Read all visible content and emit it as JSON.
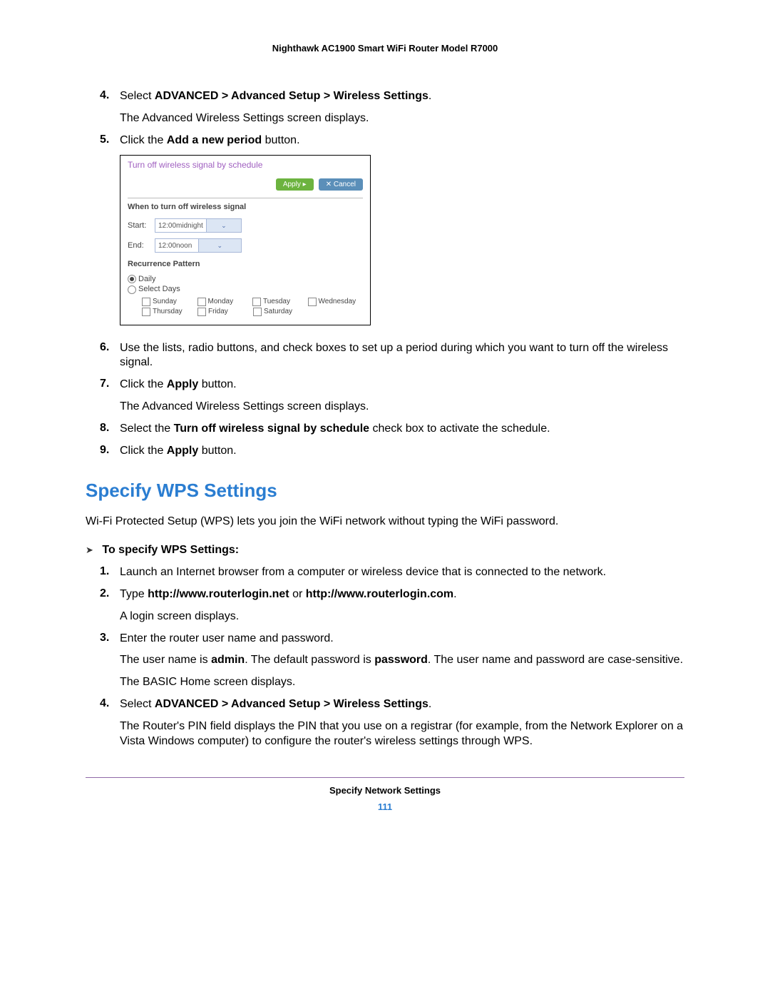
{
  "header": "Nighthawk AC1900 Smart WiFi Router Model R7000",
  "steps_top": {
    "4": {
      "line1_prefix": "Select ",
      "line1_bold": "ADVANCED > Advanced Setup > Wireless Settings",
      "line1_suffix": ".",
      "line2": "The Advanced Wireless Settings screen displays."
    },
    "5": {
      "line1_prefix": "Click the ",
      "line1_bold": "Add a new period",
      "line1_suffix": " button."
    },
    "6": "Use the lists, radio buttons, and check boxes to set up a period during which you want to turn off the wireless signal.",
    "7": {
      "line1_prefix": "Click the ",
      "line1_bold": "Apply",
      "line1_suffix": " button.",
      "line2": "The Advanced Wireless Settings screen displays."
    },
    "8": {
      "prefix": "Select the ",
      "bold": "Turn off wireless signal by schedule",
      "suffix": " check box to activate the schedule."
    },
    "9": {
      "prefix": "Click the ",
      "bold": "Apply",
      "suffix": " button."
    }
  },
  "screenshot": {
    "title": "Turn off wireless signal by schedule",
    "apply_btn": "Apply ▸",
    "cancel_btn": "✕ Cancel",
    "when_label": "When to turn off wireless signal",
    "start_label": "Start:",
    "start_value": "12:00midnight",
    "end_label": "End:",
    "end_value": "12:00noon",
    "recurrence_label": "Recurrence Pattern",
    "daily": "Daily",
    "select_days": "Select Days",
    "days_row1": [
      "Sunday",
      "Monday",
      "Tuesday",
      "Wednesday"
    ],
    "days_row2": [
      "Thursday",
      "Friday",
      "Saturday"
    ],
    "colors": {
      "title": "#a060c0",
      "apply_bg": "#6cb33f",
      "cancel_bg": "#5b8fb9",
      "select_border": "#a8b8d8",
      "chevron_bg": "#dce6f4"
    }
  },
  "section": {
    "heading": "Specify WPS Settings",
    "heading_color": "#2a7dd1",
    "intro": "Wi-Fi Protected Setup (WPS) lets you join the WiFi network without typing the WiFi password.",
    "proc_label": "To specify WPS Settings:"
  },
  "steps_bottom": {
    "1": "Launch an Internet browser from a computer or wireless device that is connected to the network.",
    "2": {
      "prefix": "Type ",
      "bold1": "http://www.routerlogin.net",
      "mid": " or ",
      "bold2": "http://www.routerlogin.com",
      "suffix": ".",
      "line2": "A login screen displays."
    },
    "3": {
      "line1": "Enter the router user name and password.",
      "line2_a": "The user name is ",
      "line2_b1": "admin",
      "line2_c": ". The default password is ",
      "line2_b2": "password",
      "line2_d": ". The user name and password are case-sensitive.",
      "line3": "The BASIC Home screen displays."
    },
    "4": {
      "prefix": "Select ",
      "bold": "ADVANCED > Advanced Setup > Wireless Settings",
      "suffix": ".",
      "line2": "The Router's PIN field displays the PIN that you use on a registrar (for example, from the Network Explorer on a Vista Windows computer) to configure the router's wireless settings through WPS."
    }
  },
  "footer": {
    "rule_color": "#8f6aa8",
    "section": "Specify Network Settings",
    "page": "111"
  }
}
